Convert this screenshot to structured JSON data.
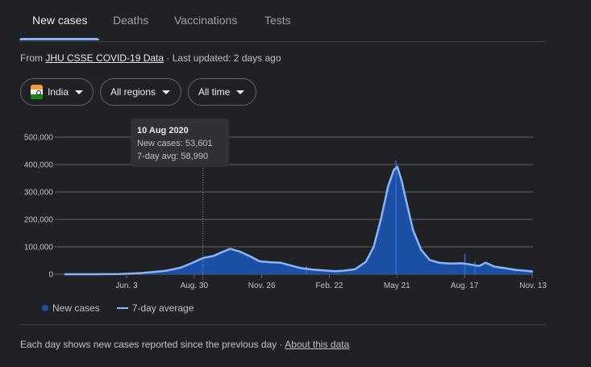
{
  "tabs": [
    {
      "label": "New cases",
      "active": true
    },
    {
      "label": "Deaths",
      "active": false
    },
    {
      "label": "Vaccinations",
      "active": false
    },
    {
      "label": "Tests",
      "active": false
    }
  ],
  "source": {
    "prefix": "From",
    "link": "JHU CSSE COVID-19 Data",
    "separator": "·",
    "updated": "Last updated: 2 days ago"
  },
  "filters": {
    "country": "India",
    "region": "All regions",
    "period": "All time"
  },
  "tooltip": {
    "date": "10 Aug 2020",
    "line1": "New cases: 53,601",
    "line2": "7-day avg: 58,990"
  },
  "legend": {
    "bars": "New cases",
    "line": "7-day average"
  },
  "footer": {
    "text": "Each day shows new cases reported since the previous day",
    "separator": "·",
    "link": "About this data"
  },
  "colors": {
    "area": "#1a4fa3",
    "line": "#8ab4f8",
    "grid": "#5f6368",
    "flag_saffron": "#ff9933",
    "flag_white": "#ffffff",
    "flag_green": "#138808",
    "flag_wheel": "#000080"
  },
  "chart_data": {
    "type": "area",
    "y_ticks": [
      "0",
      "100,000",
      "200,000",
      "300,000",
      "400,000",
      "500,000"
    ],
    "ylim": [
      0,
      500000
    ],
    "x_ticks": [
      "Jun. 3",
      "Aug. 30",
      "Nov. 26",
      "Feb. 22",
      "May 21",
      "Aug. 17",
      "Nov. 13"
    ],
    "xlim": [
      "2020-01-30",
      "2021-11-13"
    ],
    "highlight_date": "2020-08-10",
    "series": [
      {
        "name": "7-day average",
        "points": [
          [
            "2020-01-30",
            0
          ],
          [
            "2020-03-15",
            100
          ],
          [
            "2020-04-15",
            1000
          ],
          [
            "2020-05-15",
            4000
          ],
          [
            "2020-06-03",
            8500
          ],
          [
            "2020-06-20",
            13000
          ],
          [
            "2020-07-10",
            24000
          ],
          [
            "2020-07-25",
            40000
          ],
          [
            "2020-08-10",
            59000
          ],
          [
            "2020-08-25",
            67000
          ],
          [
            "2020-09-05",
            80000
          ],
          [
            "2020-09-17",
            93000
          ],
          [
            "2020-10-01",
            82000
          ],
          [
            "2020-10-15",
            65000
          ],
          [
            "2020-10-28",
            47000
          ],
          [
            "2020-11-10",
            44000
          ],
          [
            "2020-11-26",
            42000
          ],
          [
            "2020-12-10",
            32000
          ],
          [
            "2020-12-25",
            22000
          ],
          [
            "2021-01-10",
            17000
          ],
          [
            "2021-01-25",
            14000
          ],
          [
            "2021-02-10",
            11000
          ],
          [
            "2021-02-22",
            13000
          ],
          [
            "2021-03-10",
            18000
          ],
          [
            "2021-03-25",
            45000
          ],
          [
            "2021-04-05",
            100000
          ],
          [
            "2021-04-15",
            200000
          ],
          [
            "2021-04-25",
            320000
          ],
          [
            "2021-05-03",
            380000
          ],
          [
            "2021-05-08",
            392000
          ],
          [
            "2021-05-14",
            340000
          ],
          [
            "2021-05-21",
            260000
          ],
          [
            "2021-05-30",
            160000
          ],
          [
            "2021-06-10",
            90000
          ],
          [
            "2021-06-22",
            52000
          ],
          [
            "2021-07-05",
            42000
          ],
          [
            "2021-07-20",
            39000
          ],
          [
            "2021-08-05",
            40000
          ],
          [
            "2021-08-17",
            36000
          ],
          [
            "2021-08-30",
            30000
          ],
          [
            "2021-09-08",
            42000
          ],
          [
            "2021-09-20",
            28000
          ],
          [
            "2021-10-05",
            22000
          ],
          [
            "2021-10-20",
            16000
          ],
          [
            "2021-11-05",
            12000
          ],
          [
            "2021-11-13",
            10000
          ]
        ]
      },
      {
        "name": "New cases",
        "spikes": [
          [
            "2021-01-01",
            31000
          ],
          [
            "2021-08-10",
            75000
          ],
          [
            "2021-08-24",
            47000
          ],
          [
            "2021-05-06",
            414000
          ]
        ]
      }
    ]
  }
}
